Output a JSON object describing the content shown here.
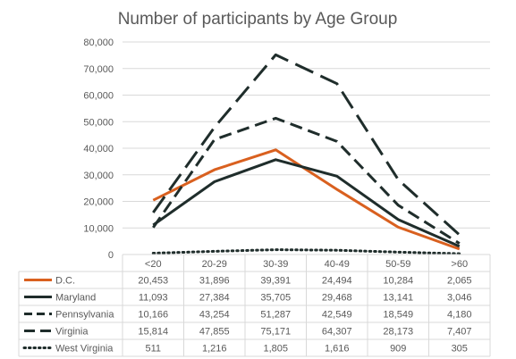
{
  "chart_data": {
    "type": "line",
    "title": "Number of participants by Age Group",
    "categories": [
      "<20",
      "20-29",
      "30-39",
      "40-49",
      "50-59",
      ">60"
    ],
    "ylim": [
      0,
      80000
    ],
    "yticks": [
      "0",
      "10,000",
      "20,000",
      "30,000",
      "40,000",
      "50,000",
      "60,000",
      "70,000",
      "80,000"
    ],
    "grid": true,
    "legend": "data-table",
    "series": [
      {
        "name": "D.C.",
        "values": [
          20453,
          31896,
          39391,
          24494,
          10284,
          2065
        ],
        "labels": [
          "20,453",
          "31,896",
          "39,391",
          "24,494",
          "10,284",
          "2,065"
        ],
        "color": "#d9601f",
        "style": "solid"
      },
      {
        "name": "Maryland",
        "values": [
          11093,
          27384,
          35705,
          29468,
          13141,
          3046
        ],
        "labels": [
          "11,093",
          "27,384",
          "35,705",
          "29,468",
          "13,141",
          "3,046"
        ],
        "color": "#1f2d2b",
        "style": "solid"
      },
      {
        "name": "Pennsylvania",
        "values": [
          10166,
          43254,
          51287,
          42549,
          18549,
          4180
        ],
        "labels": [
          "10,166",
          "43,254",
          "51,287",
          "42,549",
          "18,549",
          "4,180"
        ],
        "color": "#1f2d2b",
        "style": "dash"
      },
      {
        "name": "Virginia",
        "values": [
          15814,
          47855,
          75171,
          64307,
          28173,
          7407
        ],
        "labels": [
          "15,814",
          "47,855",
          "75,171",
          "64,307",
          "28,173",
          "7,407"
        ],
        "color": "#1f2d2b",
        "style": "longdash"
      },
      {
        "name": "West Virginia",
        "values": [
          511,
          1216,
          1805,
          1616,
          909,
          305
        ],
        "labels": [
          "511",
          "1,216",
          "1,805",
          "1,616",
          "909",
          "305"
        ],
        "color": "#1f2d2b",
        "style": "dot"
      }
    ]
  }
}
